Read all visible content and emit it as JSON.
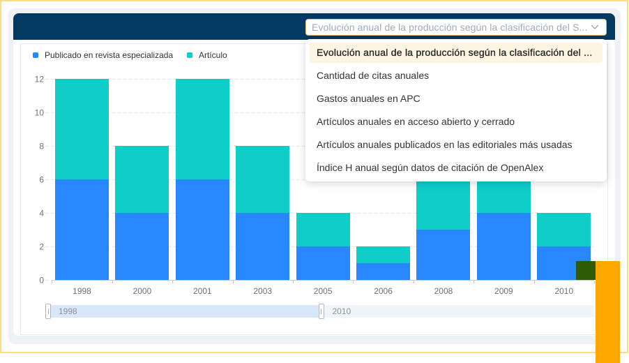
{
  "theme": {
    "header_background": "#033a62",
    "select_border": "#e2bd63",
    "option_highlight": "#fcf5e4"
  },
  "header": {
    "select": {
      "value": "Evolución anual de la producción según la clasificación del S...",
      "icon": "chevron-down-icon"
    }
  },
  "dropdown": {
    "open": true,
    "options": [
      {
        "label": "Evolución anual de la producción según la clasificación del ...",
        "highlighted": true
      },
      {
        "label": "Cantidad de citas anuales",
        "highlighted": false
      },
      {
        "label": "Gastos anuales en APC",
        "highlighted": false
      },
      {
        "label": "Artículos anuales en acceso abierto y cerrado",
        "highlighted": false
      },
      {
        "label": "Artículos anuales publicados en las editoriales más usadas",
        "highlighted": false
      },
      {
        "label": "Índice H anual según datos de citación de OpenAlex",
        "highlighted": false
      }
    ]
  },
  "chart_data": {
    "type": "bar",
    "stacked": true,
    "categories": [
      "1998",
      "2000",
      "2001",
      "2003",
      "2005",
      "2006",
      "2008",
      "2009",
      "2010"
    ],
    "series": [
      {
        "name": "Publicado en revista especializada",
        "color": "#2887fe",
        "values": [
          6,
          4,
          6,
          4,
          2,
          1,
          3,
          4,
          2
        ]
      },
      {
        "name": "Artículo",
        "color": "#0fcdc9",
        "values": [
          6,
          4,
          6,
          4,
          2,
          1,
          3,
          4,
          2
        ]
      }
    ],
    "ylim": [
      0,
      12
    ],
    "yticks": [
      0,
      2,
      4,
      6,
      8,
      10,
      12
    ],
    "grid": true,
    "legend": "top-left"
  },
  "zoom": {
    "start_label": "1998",
    "end_label": "2010",
    "range_percent": [
      0,
      50
    ]
  }
}
